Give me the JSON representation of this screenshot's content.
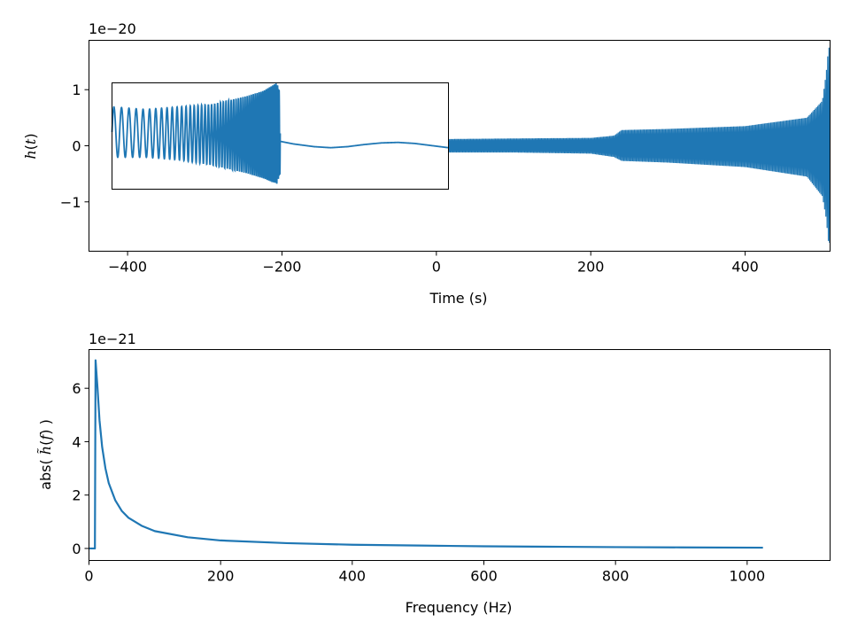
{
  "chart_data": [
    {
      "type": "line",
      "xlabel": "Time (s)",
      "ylabel": "h(t)",
      "ylabel_parts": {
        "pre": "",
        "fn": "h",
        "open": "(",
        "arg": "t",
        "close": ")"
      },
      "offset_text": "1e−20",
      "xlim": [
        -450,
        510
      ],
      "ylim": [
        -1.88,
        1.88
      ],
      "xticks": [
        -400,
        -200,
        0,
        200,
        400
      ],
      "xtick_labels": [
        "−400",
        "−200",
        "0",
        "200",
        "400"
      ],
      "yticks": [
        -1,
        0,
        1
      ],
      "ytick_labels": [
        "−1",
        "0",
        "1"
      ],
      "grid": false,
      "color": "#1f77b4",
      "series": [
        {
          "style": "dense-oscillation-envelope",
          "x": [
            14,
            100,
            200,
            230,
            240,
            300,
            400,
            480,
            500,
            505,
            508,
            510
          ],
          "upper": [
            0.12,
            0.13,
            0.14,
            0.18,
            0.28,
            0.3,
            0.35,
            0.5,
            0.8,
            1.3,
            1.75,
            1.75
          ],
          "lower": [
            -0.12,
            -0.12,
            -0.14,
            -0.2,
            -0.27,
            -0.3,
            -0.38,
            -0.55,
            -0.9,
            -1.3,
            -1.73,
            -1.73
          ]
        }
      ],
      "inset": {
        "xlim": [
          0,
          1
        ],
        "ylim": [
          -1,
          1
        ],
        "series": [
          {
            "style": "oscillation-envelope",
            "x": [
              0.0,
              0.1,
              0.2,
              0.3,
              0.4,
              0.45,
              0.49,
              0.5
            ],
            "upper": [
              0.55,
              0.5,
              0.55,
              0.6,
              0.75,
              0.85,
              1.0,
              0.8
            ],
            "lower": [
              -0.4,
              -0.4,
              -0.45,
              -0.55,
              -0.7,
              -0.8,
              -0.9,
              -0.7
            ]
          },
          {
            "style": "smooth",
            "x": [
              0.5,
              0.54,
              0.6,
              0.65,
              0.7,
              0.75,
              0.8,
              0.85,
              0.9,
              0.95,
              1.0
            ],
            "y": [
              -0.1,
              -0.15,
              -0.2,
              -0.22,
              -0.2,
              -0.16,
              -0.13,
              -0.12,
              -0.14,
              -0.18,
              -0.22
            ]
          }
        ]
      }
    },
    {
      "type": "line",
      "xlabel": "Frequency (Hz)",
      "ylabel": "abs( h(f) )",
      "ylabel_parts": {
        "pre": "abs( ",
        "fn": "h̃",
        "open": "(",
        "arg": "f",
        "close": ") )"
      },
      "offset_text": "1e−21",
      "xlim": [
        0,
        1126
      ],
      "ylim": [
        -0.45,
        7.45
      ],
      "xticks": [
        0,
        200,
        400,
        600,
        800,
        1000
      ],
      "xtick_labels": [
        "0",
        "200",
        "400",
        "600",
        "800",
        "1000"
      ],
      "yticks": [
        0,
        2,
        4,
        6
      ],
      "ytick_labels": [
        "0",
        "2",
        "4",
        "6"
      ],
      "grid": false,
      "color": "#1f77b4",
      "series": [
        {
          "style": "line",
          "x": [
            0,
            9,
            9,
            10,
            13,
            16,
            20,
            25,
            30,
            40,
            50,
            60,
            80,
            100,
            150,
            200,
            300,
            400,
            500,
            600,
            700,
            800,
            900,
            1024
          ],
          "y": [
            0,
            0,
            0,
            7.05,
            6.0,
            4.8,
            3.8,
            3.0,
            2.45,
            1.8,
            1.4,
            1.15,
            0.85,
            0.65,
            0.42,
            0.3,
            0.2,
            0.14,
            0.11,
            0.08,
            0.065,
            0.05,
            0.04,
            0.03
          ]
        }
      ]
    }
  ]
}
